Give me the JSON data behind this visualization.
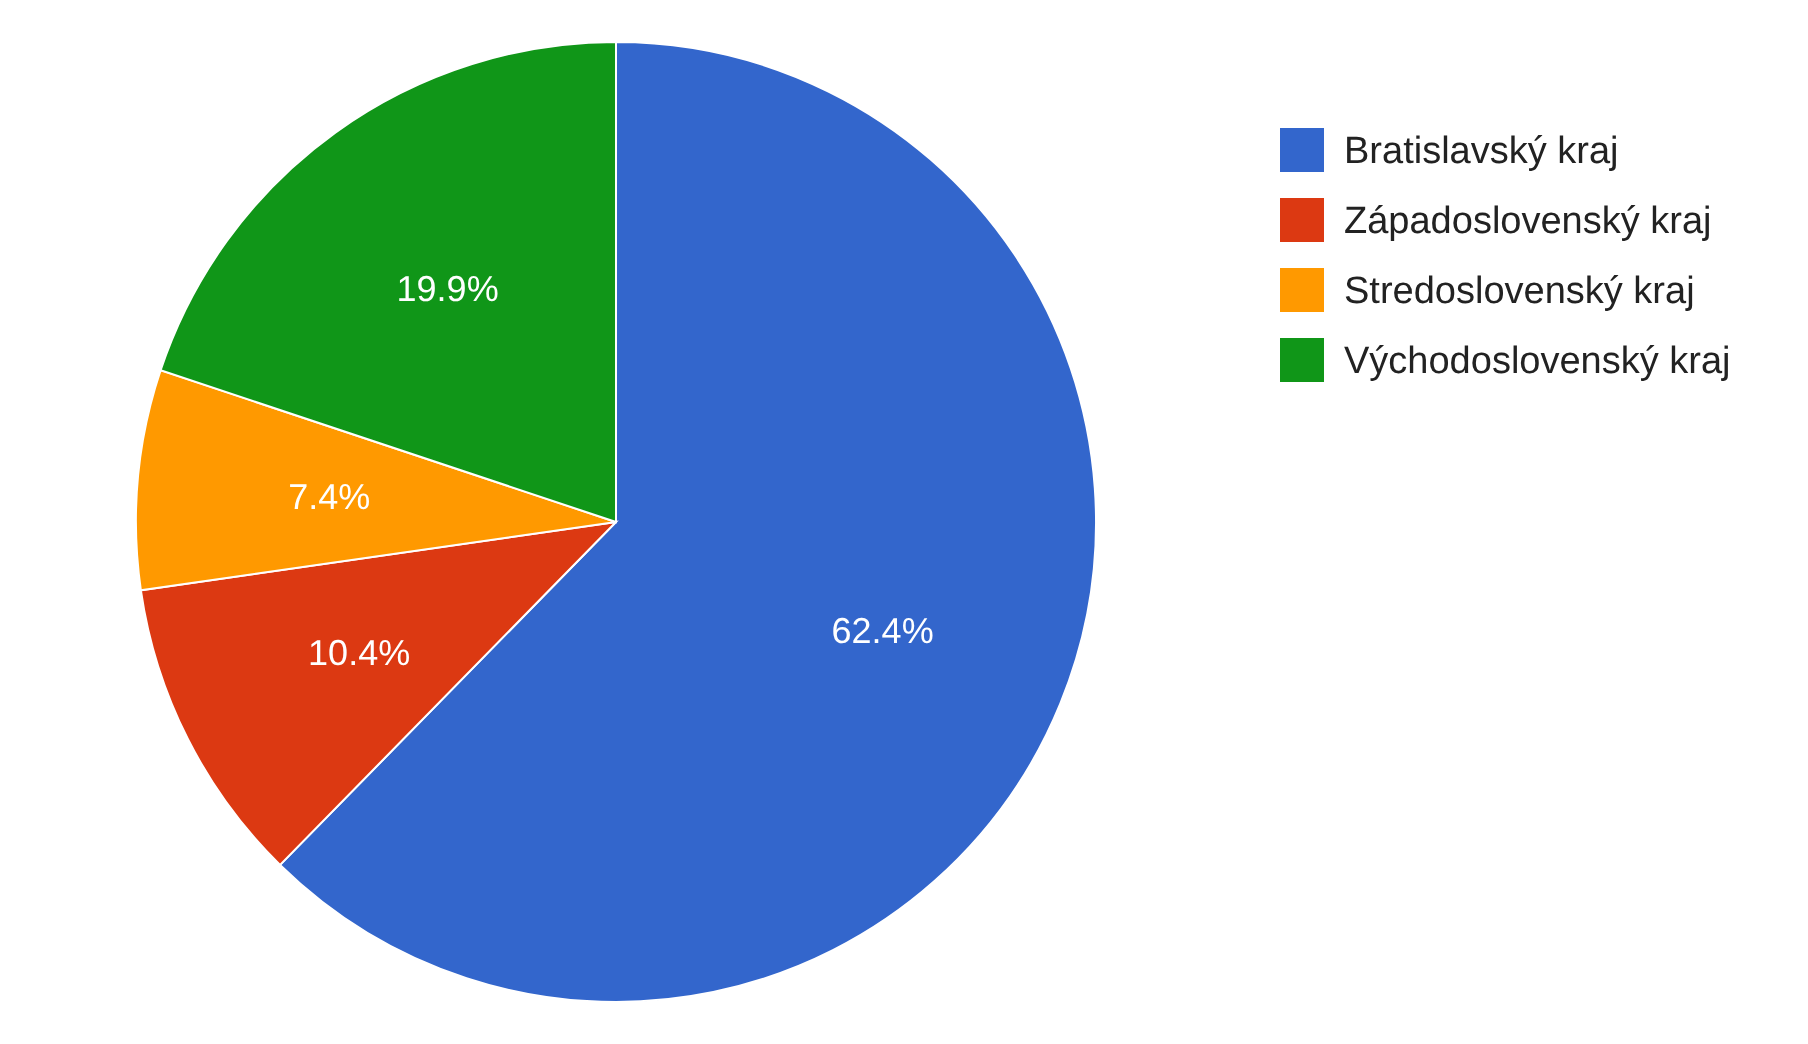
{
  "chart_data": {
    "type": "pie",
    "categories": [
      "Bratislavský kraj",
      "Západoslovenský kraj",
      "Stredoslovenský kraj",
      "Východoslovenský kraj"
    ],
    "values": [
      62.4,
      10.4,
      7.4,
      19.9
    ],
    "colors": [
      "#3366cc",
      "#dc3912",
      "#ff9900",
      "#109618"
    ],
    "value_labels": [
      "62.4%",
      "10.4%",
      "7.4%",
      "19.9%"
    ],
    "legend": "right"
  }
}
